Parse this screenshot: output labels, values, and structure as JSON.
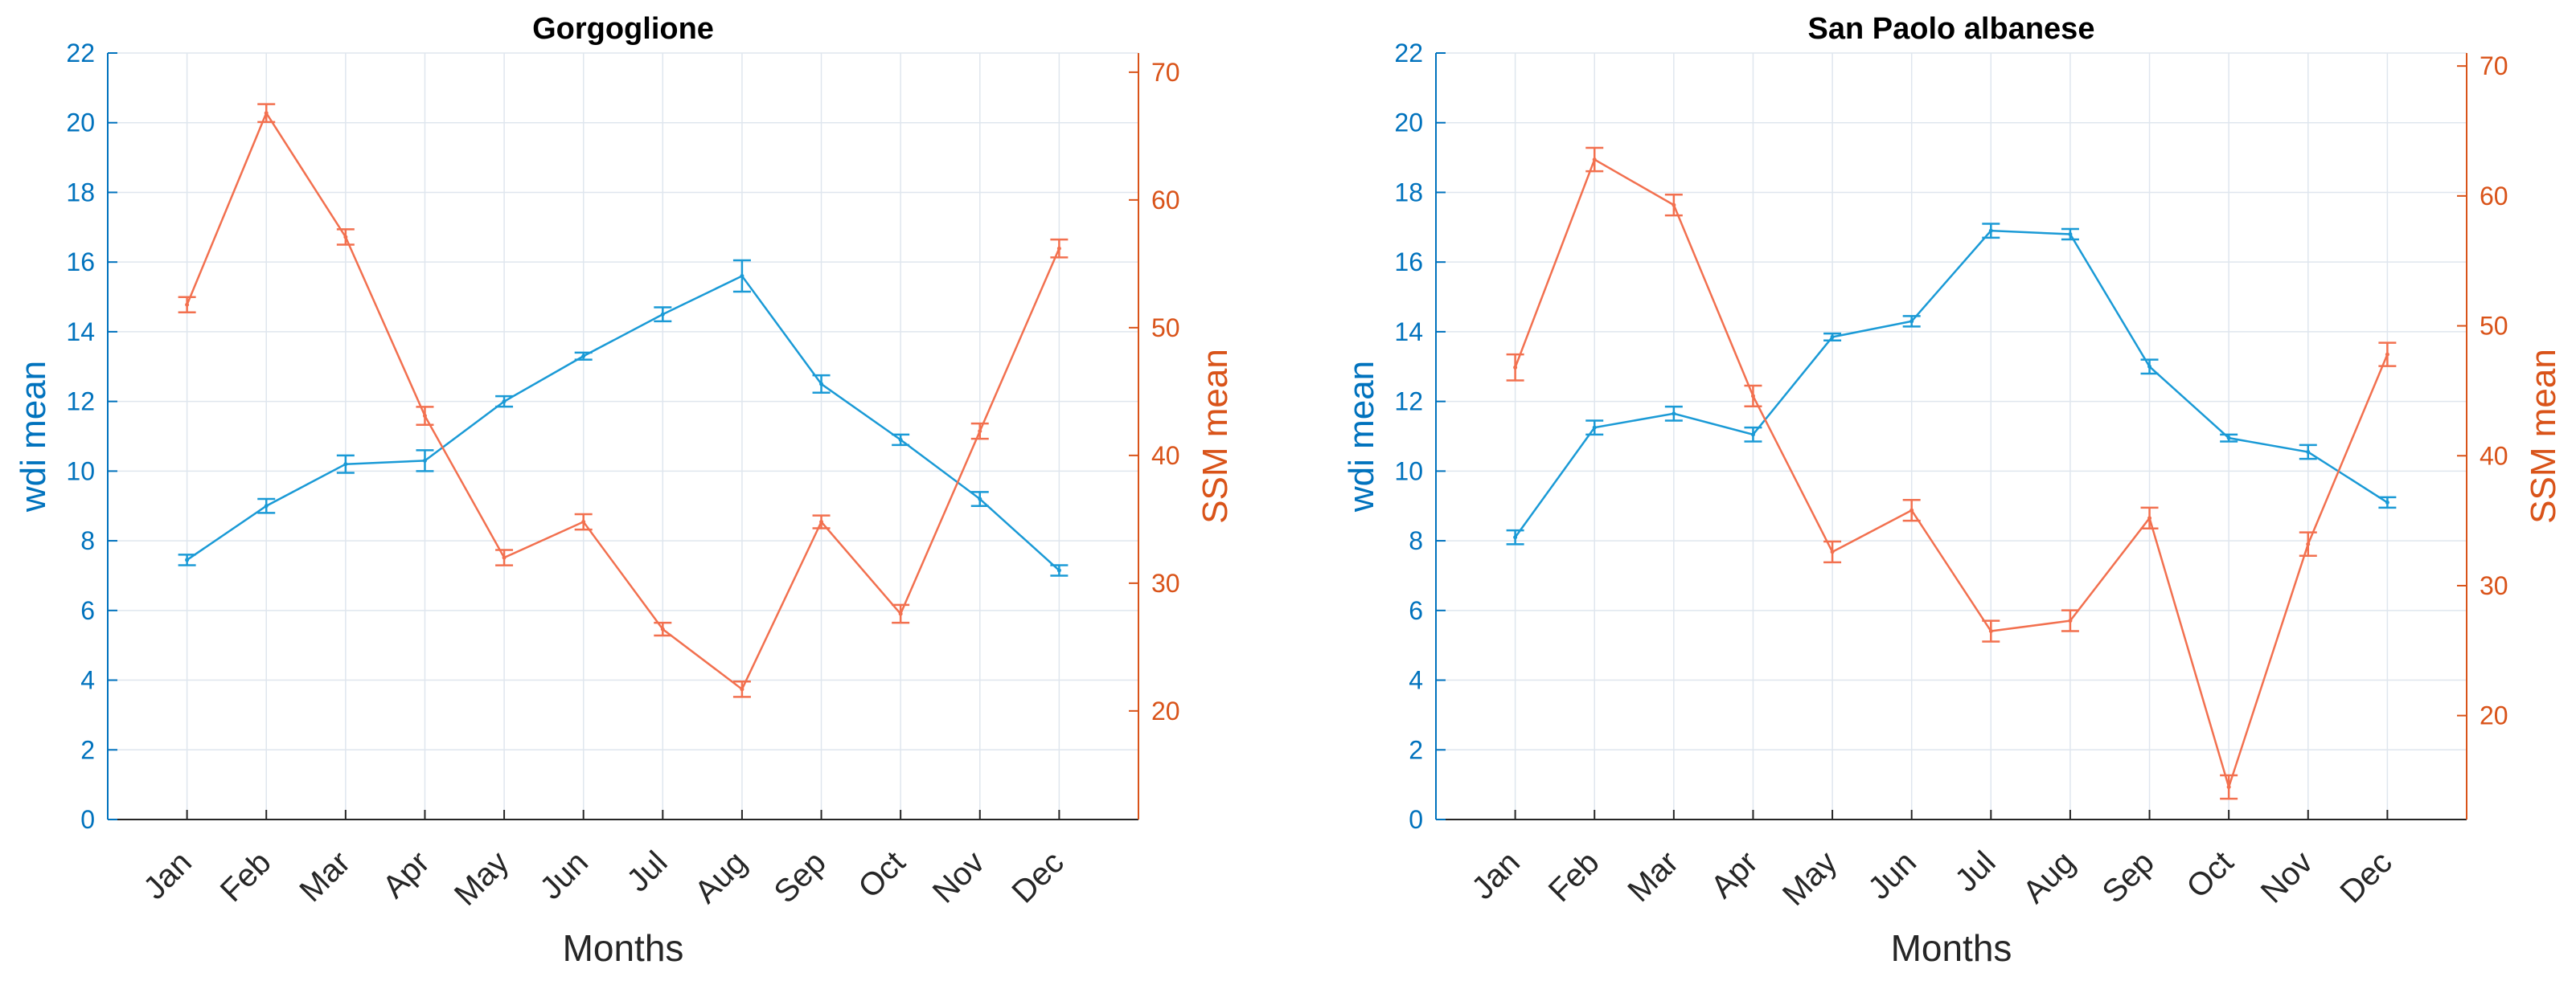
{
  "chart_data": [
    {
      "type": "line",
      "title": "Gorgoglione",
      "xlabel": "Months",
      "categories": [
        "Jan",
        "Feb",
        "Mar",
        "Apr",
        "May",
        "Jun",
        "Jul",
        "Aug",
        "Sep",
        "Oct",
        "Nov",
        "Dec"
      ],
      "grid": true,
      "y_left": {
        "label": "wdi mean",
        "range": [
          0,
          22
        ],
        "ticks": [
          "0",
          "2",
          "4",
          "6",
          "8",
          "10",
          "12",
          "14",
          "16",
          "18",
          "20",
          "22"
        ],
        "color": "#0072BD"
      },
      "y_right": {
        "label": "SSM mean",
        "range": [
          11.5,
          71.5
        ],
        "ticks": [
          "20",
          "30",
          "40",
          "50",
          "60",
          "70"
        ],
        "color": "#D95319"
      },
      "series": [
        {
          "axis": "left",
          "color": "#1a9ad6",
          "values": [
            7.45,
            9.0,
            10.2,
            10.3,
            12.0,
            13.3,
            14.5,
            15.6,
            12.5,
            10.9,
            9.2,
            7.15
          ],
          "error": [
            0.15,
            0.2,
            0.25,
            0.3,
            0.15,
            0.1,
            0.2,
            0.45,
            0.25,
            0.15,
            0.2,
            0.15
          ]
        },
        {
          "axis": "right",
          "color": "#f2704f",
          "values": [
            51.8,
            66.8,
            57.1,
            43.1,
            32.0,
            34.8,
            26.4,
            21.7,
            34.8,
            27.6,
            41.9,
            56.2
          ],
          "error": [
            0.6,
            0.7,
            0.6,
            0.7,
            0.6,
            0.6,
            0.5,
            0.6,
            0.5,
            0.7,
            0.6,
            0.7
          ]
        }
      ]
    },
    {
      "type": "line",
      "title": "San Paolo albanese",
      "xlabel": "Months",
      "categories": [
        "Jan",
        "Feb",
        "Mar",
        "Apr",
        "May",
        "Jun",
        "Jul",
        "Aug",
        "Sep",
        "Oct",
        "Nov",
        "Dec"
      ],
      "grid": true,
      "y_left": {
        "label": "wdi mean",
        "range": [
          0,
          22
        ],
        "ticks": [
          "0",
          "2",
          "4",
          "6",
          "8",
          "10",
          "12",
          "14",
          "16",
          "18",
          "20",
          "22"
        ],
        "color": "#0072BD"
      },
      "y_right": {
        "label": "SSM mean",
        "range": [
          12,
          71
        ],
        "ticks": [
          "20",
          "30",
          "40",
          "50",
          "60",
          "70"
        ],
        "color": "#D95319"
      },
      "series": [
        {
          "axis": "left",
          "color": "#1a9ad6",
          "values": [
            8.1,
            11.25,
            11.65,
            11.05,
            13.85,
            14.3,
            16.9,
            16.8,
            13.0,
            10.95,
            10.55,
            9.1
          ],
          "error": [
            0.2,
            0.2,
            0.2,
            0.2,
            0.1,
            0.15,
            0.2,
            0.15,
            0.2,
            0.1,
            0.2,
            0.15
          ]
        },
        {
          "axis": "right",
          "color": "#f2704f",
          "values": [
            46.8,
            62.8,
            59.3,
            44.6,
            32.6,
            35.8,
            26.5,
            27.3,
            35.2,
            14.5,
            33.2,
            47.8
          ],
          "error": [
            1.0,
            0.9,
            0.8,
            0.8,
            0.8,
            0.8,
            0.8,
            0.8,
            0.8,
            0.9,
            0.9,
            0.9
          ]
        }
      ]
    }
  ]
}
